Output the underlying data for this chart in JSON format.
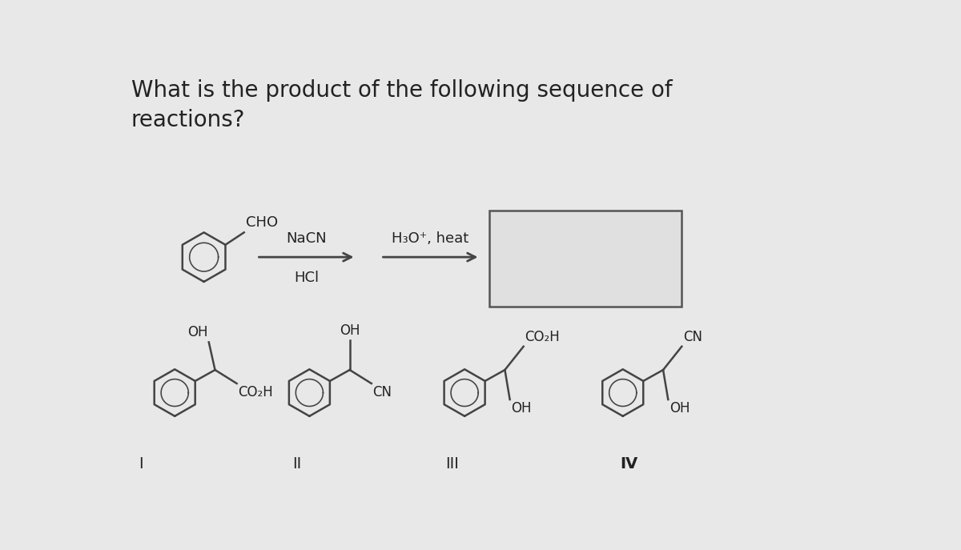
{
  "title_line1": "What is the product of the following sequence of",
  "title_line2": "reactions?",
  "title_fontsize": 20,
  "background_color": "#e8e8e8",
  "box_bg": "#e0e0e0",
  "text_color": "#222222",
  "bond_color": "#444444",
  "reagent1_line1": "NaCN",
  "reagent1_line2": "HCl",
  "reagent2": "H₃O⁺, heat",
  "label_I": "I",
  "label_II": "II",
  "label_III": "III",
  "label_IV": "IV"
}
